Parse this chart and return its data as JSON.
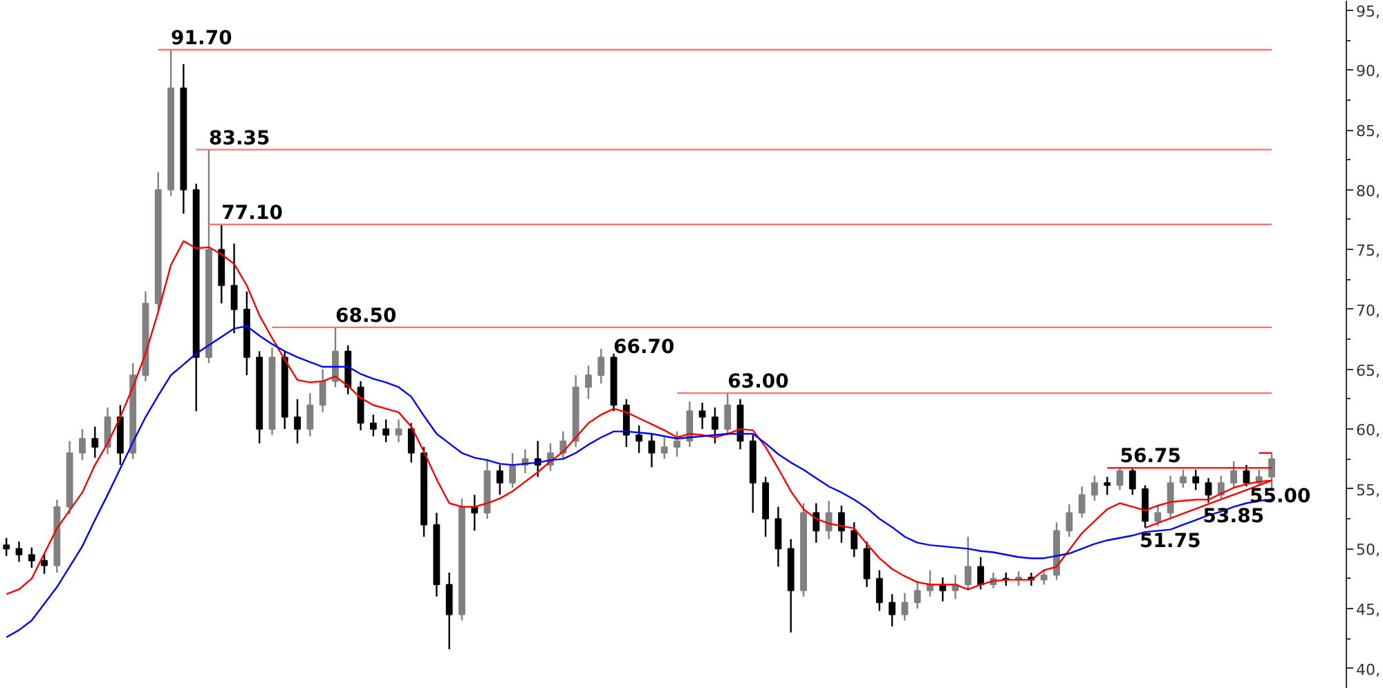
{
  "chart_data": {
    "type": "candlestick",
    "categories": [
      null,
      null,
      null,
      null,
      null,
      null,
      null,
      null,
      null,
      null,
      null,
      null,
      null,
      null,
      null,
      null,
      null,
      null,
      null,
      null,
      null,
      null,
      null,
      null,
      null,
      null,
      null,
      null,
      null,
      null,
      null,
      null,
      null,
      null,
      null,
      null,
      null,
      null,
      null,
      null,
      null,
      null,
      null,
      null,
      null,
      null,
      null,
      null,
      null,
      null,
      null,
      null,
      null,
      null,
      null,
      null,
      null,
      null,
      null,
      null,
      null,
      null,
      null,
      null,
      null,
      null,
      null,
      null,
      null,
      null,
      null,
      null,
      null,
      null,
      null,
      null,
      null,
      null,
      null,
      null,
      null,
      null,
      null,
      null,
      null,
      null,
      null,
      null,
      null,
      null,
      null,
      null,
      null,
      null,
      null,
      null,
      null,
      null,
      null,
      null,
      null
    ],
    "ohlc": [
      [
        50.3,
        50.9,
        49.4,
        50.0
      ],
      [
        50.0,
        50.6,
        48.9,
        49.5
      ],
      [
        49.5,
        50.1,
        48.4,
        49.0
      ],
      [
        49.0,
        49.6,
        47.9,
        48.6
      ],
      [
        48.6,
        54.1,
        48.0,
        53.5
      ],
      [
        53.5,
        59.0,
        52.9,
        58.0
      ],
      [
        58.0,
        60.0,
        57.4,
        59.2
      ],
      [
        59.2,
        60.2,
        57.6,
        58.5
      ],
      [
        58.5,
        61.8,
        57.9,
        61.0
      ],
      [
        61.0,
        62.0,
        57.0,
        58.0
      ],
      [
        58.0,
        65.5,
        57.5,
        64.5
      ],
      [
        64.5,
        71.5,
        64.0,
        70.5
      ],
      [
        70.5,
        81.5,
        70.0,
        80.0
      ],
      [
        80.0,
        91.7,
        79.5,
        88.5
      ],
      [
        88.5,
        90.5,
        78.0,
        80.0
      ],
      [
        80.0,
        80.5,
        61.5,
        66.0
      ],
      [
        66.0,
        83.35,
        65.5,
        75.0
      ],
      [
        75.0,
        77.1,
        70.5,
        72.0
      ],
      [
        72.0,
        75.5,
        68.0,
        70.0
      ],
      [
        70.0,
        71.5,
        64.5,
        66.0
      ],
      [
        66.0,
        66.5,
        58.8,
        60.0
      ],
      [
        60.0,
        66.8,
        59.5,
        66.0
      ],
      [
        66.0,
        66.5,
        60.0,
        61.0
      ],
      [
        61.0,
        62.5,
        58.8,
        60.0
      ],
      [
        60.0,
        63.0,
        59.4,
        62.0
      ],
      [
        62.0,
        65.0,
        61.4,
        64.0
      ],
      [
        64.0,
        68.5,
        63.5,
        66.5
      ],
      [
        66.5,
        67.0,
        62.9,
        63.5
      ],
      [
        63.5,
        64.0,
        59.9,
        60.5
      ],
      [
        60.5,
        61.2,
        59.4,
        60.0
      ],
      [
        60.0,
        60.8,
        58.9,
        59.5
      ],
      [
        59.5,
        60.8,
        58.9,
        60.0
      ],
      [
        60.0,
        60.5,
        57.2,
        58.0
      ],
      [
        58.0,
        58.5,
        51.0,
        52.0
      ],
      [
        52.0,
        53.0,
        46.0,
        47.0
      ],
      [
        47.0,
        48.0,
        41.6,
        44.5
      ],
      [
        44.5,
        54.2,
        44.0,
        53.5
      ],
      [
        53.5,
        54.5,
        51.5,
        53.0
      ],
      [
        53.0,
        57.5,
        52.5,
        56.5
      ],
      [
        56.5,
        57.0,
        54.5,
        55.5
      ],
      [
        55.5,
        58.0,
        55.1,
        57.0
      ],
      [
        57.0,
        58.3,
        56.3,
        57.5
      ],
      [
        57.5,
        59.0,
        56.0,
        57.0
      ],
      [
        57.0,
        58.8,
        56.5,
        58.0
      ],
      [
        58.0,
        59.8,
        57.5,
        59.0
      ],
      [
        59.0,
        64.5,
        58.5,
        63.5
      ],
      [
        63.5,
        65.3,
        62.5,
        64.5
      ],
      [
        64.5,
        66.7,
        63.8,
        66.0
      ],
      [
        66.0,
        66.3,
        61.5,
        62.0
      ],
      [
        62.0,
        62.5,
        58.5,
        59.5
      ],
      [
        59.5,
        60.3,
        58.0,
        59.0
      ],
      [
        59.0,
        59.6,
        56.8,
        58.0
      ],
      [
        58.0,
        59.3,
        57.5,
        58.5
      ],
      [
        58.5,
        59.8,
        57.7,
        59.0
      ],
      [
        59.0,
        62.3,
        58.5,
        61.5
      ],
      [
        61.5,
        62.2,
        60.0,
        61.0
      ],
      [
        61.0,
        61.8,
        58.8,
        60.0
      ],
      [
        60.0,
        63.0,
        59.5,
        62.0
      ],
      [
        62.0,
        62.5,
        58.3,
        59.0
      ],
      [
        59.0,
        59.5,
        53.0,
        55.5
      ],
      [
        55.5,
        56.0,
        51.0,
        52.5
      ],
      [
        52.5,
        53.5,
        48.5,
        50.0
      ],
      [
        50.0,
        50.8,
        43.0,
        46.5
      ],
      [
        46.5,
        53.8,
        46.0,
        53.0
      ],
      [
        53.0,
        53.8,
        50.5,
        51.5
      ],
      [
        51.5,
        54.0,
        50.8,
        53.0
      ],
      [
        53.0,
        53.6,
        50.5,
        51.5
      ],
      [
        51.5,
        52.2,
        49.3,
        50.0
      ],
      [
        50.0,
        50.6,
        46.8,
        47.5
      ],
      [
        47.5,
        48.2,
        44.8,
        45.5
      ],
      [
        45.5,
        46.2,
        43.5,
        44.5
      ],
      [
        44.5,
        46.3,
        44.0,
        45.5
      ],
      [
        45.5,
        47.3,
        45.0,
        46.5
      ],
      [
        46.5,
        48.2,
        46.0,
        47.0
      ],
      [
        47.0,
        47.6,
        45.6,
        46.5
      ],
      [
        46.5,
        47.8,
        45.8,
        47.0
      ],
      [
        47.0,
        51.0,
        46.5,
        48.5
      ],
      [
        48.5,
        49.3,
        46.6,
        47.0
      ],
      [
        47.0,
        48.0,
        46.7,
        47.5
      ],
      [
        47.5,
        48.0,
        46.9,
        47.4
      ],
      [
        47.4,
        48.1,
        46.9,
        47.6
      ],
      [
        47.6,
        48.0,
        46.9,
        47.4
      ],
      [
        47.4,
        48.3,
        47.0,
        47.8
      ],
      [
        47.8,
        52.2,
        47.4,
        51.5
      ],
      [
        51.5,
        53.7,
        51.0,
        53.0
      ],
      [
        53.0,
        55.2,
        52.6,
        54.5
      ],
      [
        54.5,
        56.1,
        54.0,
        55.5
      ],
      [
        55.5,
        56.0,
        54.5,
        55.3
      ],
      [
        55.3,
        56.75,
        54.9,
        56.5
      ],
      [
        56.5,
        56.7,
        54.5,
        55.0
      ],
      [
        55.0,
        55.3,
        51.75,
        52.3
      ],
      [
        52.3,
        53.6,
        51.9,
        53.0
      ],
      [
        53.0,
        56.1,
        52.6,
        55.5
      ],
      [
        55.5,
        56.6,
        55.1,
        56.0
      ],
      [
        56.0,
        56.6,
        54.9,
        55.5
      ],
      [
        55.5,
        55.9,
        53.85,
        54.5
      ],
      [
        54.5,
        56.1,
        54.2,
        55.5
      ],
      [
        55.5,
        57.3,
        55.1,
        56.5
      ],
      [
        56.5,
        57.0,
        55.2,
        55.5
      ],
      [
        55.5,
        56.6,
        55.2,
        56.0
      ],
      [
        56.0,
        58.0,
        55.0,
        57.5
      ]
    ],
    "colors": [
      "#000000",
      "#000000",
      "#000000",
      "#000000",
      "#808080",
      "#808080",
      "#808080",
      "#000000",
      "#808080",
      "#000000",
      "#808080",
      "#808080",
      "#808080",
      "#808080",
      "#000000",
      "#000000",
      "#808080",
      "#000000",
      "#000000",
      "#000000",
      "#000000",
      "#808080",
      "#000000",
      "#000000",
      "#808080",
      "#808080",
      "#808080",
      "#000000",
      "#000000",
      "#000000",
      "#000000",
      "#808080",
      "#000000",
      "#000000",
      "#000000",
      "#000000",
      "#808080",
      "#000000",
      "#808080",
      "#000000",
      "#808080",
      "#808080",
      "#000000",
      "#808080",
      "#808080",
      "#808080",
      "#808080",
      "#808080",
      "#000000",
      "#000000",
      "#000000",
      "#000000",
      "#808080",
      "#808080",
      "#808080",
      "#000000",
      "#000000",
      "#808080",
      "#000000",
      "#000000",
      "#000000",
      "#000000",
      "#000000",
      "#808080",
      "#000000",
      "#808080",
      "#000000",
      "#000000",
      "#000000",
      "#000000",
      "#000000",
      "#808080",
      "#808080",
      "#808080",
      "#000000",
      "#808080",
      "#808080",
      "#000000",
      "#808080",
      "#000000",
      "#808080",
      "#000000",
      "#808080",
      "#808080",
      "#808080",
      "#808080",
      "#808080",
      "#000000",
      "#808080",
      "#000000",
      "#000000",
      "#808080",
      "#808080",
      "#808080",
      "#000000",
      "#000000",
      "#808080",
      "#808080",
      "#000000",
      "#808080",
      "#808080"
    ],
    "series": [
      {
        "type": "line",
        "color": "#ff0000",
        "values": [
          46.2,
          46.6,
          47.5,
          49.6,
          51.7,
          53.2,
          54.7,
          57.0,
          58.8,
          61.0,
          63.5,
          66.3,
          69.8,
          73.7,
          75.7,
          75.1,
          75.2,
          74.6,
          73.8,
          72.0,
          69.5,
          67.6,
          65.8,
          64.1,
          63.9,
          64.0,
          64.4,
          63.6,
          62.6,
          62.0,
          61.7,
          61.4,
          60.2,
          58.1,
          55.8,
          53.8,
          53.5,
          53.5,
          53.8,
          54.2,
          54.8,
          55.6,
          56.4,
          57.3,
          58.1,
          59.3,
          60.5,
          61.2,
          61.7,
          61.4,
          60.9,
          60.4,
          59.9,
          59.3,
          59.6,
          59.5,
          59.3,
          59.6,
          60.0,
          59.9,
          58.5,
          56.7,
          54.8,
          53.3,
          52.5,
          52.1,
          51.9,
          51.7,
          50.4,
          49.2,
          48.3,
          47.7,
          47.2,
          47.0,
          47.0,
          47.0,
          46.6,
          47.0,
          47.3,
          47.4,
          47.4,
          47.4,
          48.2,
          48.5,
          49.9,
          51.3,
          52.3,
          53.3,
          53.8,
          53.5,
          53.2,
          53.6,
          53.9,
          54.0,
          54.1,
          54.1,
          54.6,
          55.1,
          55.4,
          55.6,
          55.7
        ]
      },
      {
        "type": "line",
        "color": "#0000ff",
        "values": [
          42.6,
          43.2,
          44.0,
          45.4,
          46.8,
          48.5,
          50.2,
          52.4,
          54.5,
          56.7,
          58.9,
          61.0,
          62.8,
          64.5,
          65.4,
          66.3,
          67.0,
          67.7,
          68.4,
          68.6,
          67.8,
          67.1,
          66.5,
          66.0,
          65.6,
          65.2,
          65.2,
          65.2,
          64.6,
          64.2,
          63.9,
          63.5,
          62.7,
          61.1,
          59.6,
          58.8,
          58.0,
          57.6,
          57.4,
          57.1,
          57.0,
          57.1,
          57.2,
          57.4,
          57.5,
          58.0,
          58.7,
          59.3,
          59.8,
          59.8,
          59.7,
          59.6,
          59.4,
          59.2,
          59.3,
          59.4,
          59.5,
          59.6,
          59.6,
          59.6,
          58.8,
          57.9,
          57.2,
          56.6,
          55.9,
          55.2,
          54.7,
          54.1,
          53.4,
          52.5,
          51.8,
          51.0,
          50.5,
          50.3,
          50.2,
          50.1,
          50.0,
          49.8,
          49.7,
          49.5,
          49.3,
          49.2,
          49.2,
          49.4,
          49.6,
          50.0,
          50.4,
          50.7,
          50.9,
          51.1,
          51.4,
          51.5,
          51.6,
          52.0,
          52.4,
          52.8,
          53.1,
          53.5,
          53.8,
          54.0,
          54.1
        ]
      },
      {
        "type": "line",
        "color": "#ff7070",
        "values": [
          null,
          null,
          null,
          null,
          null,
          null,
          null,
          null,
          null,
          null,
          null,
          null,
          91.7,
          91.7,
          91.7,
          91.7,
          91.7,
          91.7,
          91.7,
          91.7,
          91.7,
          91.7,
          91.7,
          91.7,
          91.7,
          91.7,
          91.7,
          91.7,
          91.7,
          91.7,
          91.7,
          91.7,
          91.7,
          91.7,
          91.7,
          91.7,
          91.7,
          91.7,
          91.7,
          91.7,
          91.7,
          91.7,
          91.7,
          91.7,
          91.7,
          91.7,
          91.7,
          91.7,
          91.7,
          91.7,
          91.7,
          91.7,
          91.7,
          91.7,
          91.7,
          91.7,
          91.7,
          91.7,
          91.7,
          91.7,
          91.7,
          91.7,
          91.7,
          91.7,
          91.7,
          91.7,
          91.7,
          91.7,
          91.7,
          91.7,
          91.7,
          91.7,
          91.7,
          91.7,
          91.7,
          91.7,
          91.7,
          91.7,
          91.7,
          91.7,
          91.7,
          91.7,
          91.7,
          91.7,
          91.7,
          91.7,
          91.7,
          91.7,
          91.7,
          91.7,
          91.7,
          91.7,
          91.7,
          91.7,
          91.7,
          91.7,
          91.7,
          91.7,
          91.7,
          91.7,
          91.7
        ]
      },
      {
        "type": "line",
        "color": "#ff7070",
        "values": [
          null,
          null,
          null,
          null,
          null,
          null,
          null,
          null,
          null,
          null,
          null,
          null,
          null,
          null,
          null,
          83.35,
          83.35,
          83.35,
          83.35,
          83.35,
          83.35,
          83.35,
          83.35,
          83.35,
          83.35,
          83.35,
          83.35,
          83.35,
          83.35,
          83.35,
          83.35,
          83.35,
          83.35,
          83.35,
          83.35,
          83.35,
          83.35,
          83.35,
          83.35,
          83.35,
          83.35,
          83.35,
          83.35,
          83.35,
          83.35,
          83.35,
          83.35,
          83.35,
          83.35,
          83.35,
          83.35,
          83.35,
          83.35,
          83.35,
          83.35,
          83.35,
          83.35,
          83.35,
          83.35,
          83.35,
          83.35,
          83.35,
          83.35,
          83.35,
          83.35,
          83.35,
          83.35,
          83.35,
          83.35,
          83.35,
          83.35,
          83.35,
          83.35,
          83.35,
          83.35,
          83.35,
          83.35,
          83.35,
          83.35,
          83.35,
          83.35,
          83.35,
          83.35,
          83.35,
          83.35,
          83.35,
          83.35,
          83.35,
          83.35,
          83.35,
          83.35,
          83.35,
          83.35,
          83.35,
          83.35,
          83.35,
          83.35,
          83.35,
          83.35,
          83.35,
          83.35
        ]
      },
      {
        "type": "line",
        "color": "#ff7070",
        "values": [
          null,
          null,
          null,
          null,
          null,
          null,
          null,
          null,
          null,
          null,
          null,
          null,
          null,
          null,
          null,
          null,
          77.1,
          77.1,
          77.1,
          77.1,
          77.1,
          77.1,
          77.1,
          77.1,
          77.1,
          77.1,
          77.1,
          77.1,
          77.1,
          77.1,
          77.1,
          77.1,
          77.1,
          77.1,
          77.1,
          77.1,
          77.1,
          77.1,
          77.1,
          77.1,
          77.1,
          77.1,
          77.1,
          77.1,
          77.1,
          77.1,
          77.1,
          77.1,
          77.1,
          77.1,
          77.1,
          77.1,
          77.1,
          77.1,
          77.1,
          77.1,
          77.1,
          77.1,
          77.1,
          77.1,
          77.1,
          77.1,
          77.1,
          77.1,
          77.1,
          77.1,
          77.1,
          77.1,
          77.1,
          77.1,
          77.1,
          77.1,
          77.1,
          77.1,
          77.1,
          77.1,
          77.1,
          77.1,
          77.1,
          77.1,
          77.1,
          77.1,
          77.1,
          77.1,
          77.1,
          77.1,
          77.1,
          77.1,
          77.1,
          77.1,
          77.1,
          77.1,
          77.1,
          77.1,
          77.1,
          77.1,
          77.1,
          77.1,
          77.1,
          77.1,
          77.1
        ]
      },
      {
        "type": "line",
        "color": "#ff7070",
        "values": [
          null,
          null,
          null,
          null,
          null,
          null,
          null,
          null,
          null,
          null,
          null,
          null,
          null,
          null,
          null,
          null,
          null,
          null,
          null,
          null,
          null,
          68.5,
          68.5,
          68.5,
          68.5,
          68.5,
          68.5,
          68.5,
          68.5,
          68.5,
          68.5,
          68.5,
          68.5,
          68.5,
          68.5,
          68.5,
          68.5,
          68.5,
          68.5,
          68.5,
          68.5,
          68.5,
          68.5,
          68.5,
          68.5,
          68.5,
          68.5,
          68.5,
          68.5,
          68.5,
          68.5,
          68.5,
          68.5,
          68.5,
          68.5,
          68.5,
          68.5,
          68.5,
          68.5,
          68.5,
          68.5,
          68.5,
          68.5,
          68.5,
          68.5,
          68.5,
          68.5,
          68.5,
          68.5,
          68.5,
          68.5,
          68.5,
          68.5,
          68.5,
          68.5,
          68.5,
          68.5,
          68.5,
          68.5,
          68.5,
          68.5,
          68.5,
          68.5,
          68.5,
          68.5,
          68.5,
          68.5,
          68.5,
          68.5,
          68.5,
          68.5,
          68.5,
          68.5,
          68.5,
          68.5,
          68.5,
          68.5,
          68.5,
          68.5,
          68.5,
          68.5
        ]
      },
      {
        "type": "line",
        "color": "#ff7070",
        "values": [
          null,
          null,
          null,
          null,
          null,
          null,
          null,
          null,
          null,
          null,
          null,
          null,
          null,
          null,
          null,
          null,
          null,
          null,
          null,
          null,
          null,
          null,
          null,
          null,
          null,
          null,
          null,
          null,
          null,
          null,
          null,
          null,
          null,
          null,
          null,
          null,
          null,
          null,
          null,
          null,
          null,
          null,
          null,
          null,
          null,
          null,
          null,
          null,
          null,
          null,
          null,
          null,
          null,
          63.0,
          63.0,
          63.0,
          63.0,
          63.0,
          63.0,
          63.0,
          63.0,
          63.0,
          63.0,
          63.0,
          63.0,
          63.0,
          63.0,
          63.0,
          63.0,
          63.0,
          63.0,
          63.0,
          63.0,
          63.0,
          63.0,
          63.0,
          63.0,
          63.0,
          63.0,
          63.0,
          63.0,
          63.0,
          63.0,
          63.0,
          63.0,
          63.0,
          63.0,
          63.0,
          63.0,
          63.0,
          63.0,
          63.0,
          63.0,
          63.0,
          63.0,
          63.0,
          63.0,
          63.0,
          63.0,
          63.0,
          63.0
        ]
      },
      {
        "type": "line",
        "color": "#ff0000",
        "values": [
          null,
          null,
          null,
          null,
          null,
          null,
          null,
          null,
          null,
          null,
          null,
          null,
          null,
          null,
          null,
          null,
          null,
          null,
          null,
          null,
          null,
          null,
          null,
          null,
          null,
          null,
          null,
          null,
          null,
          null,
          null,
          null,
          null,
          null,
          null,
          null,
          null,
          null,
          null,
          null,
          null,
          null,
          null,
          null,
          null,
          null,
          null,
          null,
          null,
          null,
          null,
          null,
          null,
          null,
          null,
          null,
          null,
          null,
          null,
          null,
          null,
          null,
          null,
          null,
          null,
          null,
          null,
          null,
          null,
          null,
          null,
          null,
          null,
          null,
          null,
          null,
          null,
          null,
          null,
          null,
          null,
          null,
          null,
          null,
          null,
          null,
          null,
          56.75,
          56.75,
          56.75,
          56.75,
          56.75,
          56.75,
          56.75,
          56.75,
          56.75,
          56.75,
          56.75,
          56.75,
          56.75,
          56.75
        ]
      },
      {
        "type": "line",
        "color": "#ff0000",
        "values": [
          null,
          null,
          null,
          null,
          null,
          null,
          null,
          null,
          null,
          null,
          null,
          null,
          null,
          null,
          null,
          null,
          null,
          null,
          null,
          null,
          null,
          null,
          null,
          null,
          null,
          null,
          null,
          null,
          null,
          null,
          null,
          null,
          null,
          null,
          null,
          null,
          null,
          null,
          null,
          null,
          null,
          null,
          null,
          null,
          null,
          null,
          null,
          null,
          null,
          null,
          null,
          null,
          null,
          null,
          null,
          null,
          null,
          null,
          null,
          null,
          null,
          null,
          null,
          null,
          null,
          null,
          null,
          null,
          null,
          null,
          null,
          null,
          null,
          null,
          null,
          null,
          null,
          null,
          null,
          null,
          null,
          null,
          null,
          null,
          null,
          null,
          null,
          null,
          null,
          null,
          null,
          null,
          null,
          null,
          null,
          null,
          null,
          null,
          null,
          58.0,
          58.0
        ]
      },
      {
        "type": "line",
        "color": "#ff0000",
        "values": [
          null,
          null,
          null,
          null,
          null,
          null,
          null,
          null,
          null,
          null,
          null,
          null,
          null,
          null,
          null,
          null,
          null,
          null,
          null,
          null,
          null,
          null,
          null,
          null,
          null,
          null,
          null,
          null,
          null,
          null,
          null,
          null,
          null,
          null,
          null,
          null,
          null,
          null,
          null,
          null,
          null,
          null,
          null,
          null,
          null,
          null,
          null,
          null,
          null,
          null,
          null,
          null,
          null,
          null,
          null,
          null,
          null,
          null,
          null,
          null,
          null,
          null,
          null,
          null,
          null,
          null,
          null,
          null,
          null,
          null,
          null,
          null,
          null,
          null,
          null,
          null,
          null,
          null,
          null,
          null,
          null,
          null,
          null,
          null,
          null,
          null,
          null,
          null,
          null,
          null,
          51.75,
          52.15,
          52.54,
          52.94,
          53.33,
          53.73,
          54.12,
          54.52,
          54.91,
          55.31,
          55.7
        ]
      }
    ],
    "annotations": [
      {
        "text": "91.70",
        "y": 91.7
      },
      {
        "text": "83.35",
        "y": 83.35
      },
      {
        "text": "77.10",
        "y": 77.1
      },
      {
        "text": "68.50",
        "y": 68.5
      },
      "66.70",
      {
        "text": "63.00",
        "y": 63.0
      },
      {
        "text": "56.75",
        "y": 56.75
      },
      {
        "text": "51.75",
        "y": 51.75
      },
      {
        "text": "53.85",
        "y": 53.85
      },
      "55.00"
    ],
    "ylim": [
      38.3,
      95.8
    ],
    "yticks": [
      {
        "value": 40,
        "label": "40,"
      },
      {
        "value": 45,
        "label": "45,"
      },
      {
        "value": 50,
        "label": "50,"
      },
      {
        "value": 55,
        "label": "55,"
      },
      {
        "value": 60,
        "label": "60,"
      },
      {
        "value": 65,
        "label": "65,"
      },
      {
        "value": 70,
        "label": "70,"
      },
      {
        "value": 75,
        "label": "75,"
      },
      {
        "value": 80,
        "label": "80,"
      },
      {
        "value": 85,
        "label": "85,"
      },
      {
        "value": 90,
        "label": "90,"
      },
      {
        "value": 95,
        "label": "95,"
      }
    ],
    "tick_labels": "y"
  }
}
